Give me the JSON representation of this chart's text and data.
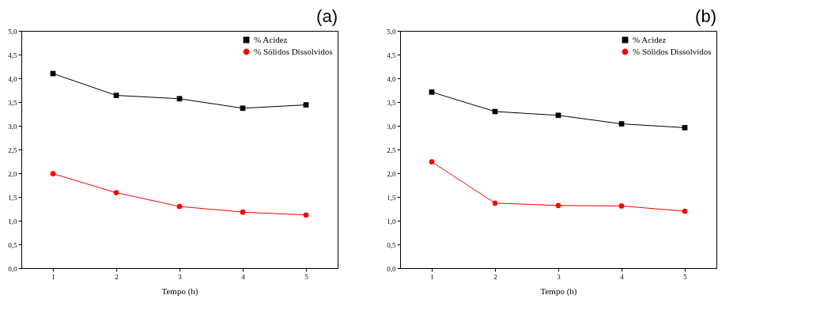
{
  "chart_data": [
    {
      "type": "line",
      "title": "(a)",
      "xlabel": "Tempo (h)",
      "x": [
        1,
        2,
        3,
        4,
        5
      ],
      "series": [
        {
          "name": "% Acidez",
          "color": "#000000",
          "marker": "square",
          "values": [
            4.1,
            3.64,
            3.57,
            3.37,
            3.44
          ]
        },
        {
          "name": "% Sólidos Dissolvidos",
          "color": "#ff0000",
          "marker": "circle",
          "values": [
            1.99,
            1.59,
            1.3,
            1.18,
            1.12
          ]
        }
      ],
      "xlim": [
        0.5,
        5.5
      ],
      "xticks": [
        1,
        2,
        3,
        4,
        5
      ],
      "ylim": [
        0,
        5
      ],
      "yticks": [
        {
          "value": 0,
          "label": "0,0"
        },
        {
          "value": 0.5,
          "label": "0,5"
        },
        {
          "value": 1,
          "label": "1,0"
        },
        {
          "value": 1.5,
          "label": "1,5"
        },
        {
          "value": 2,
          "label": "2,0"
        },
        {
          "value": 2.5,
          "label": "2,5"
        },
        {
          "value": 3,
          "label": "3,0"
        },
        {
          "value": 3.5,
          "label": "3,5"
        },
        {
          "value": 4,
          "label": "4,0"
        },
        {
          "value": 4.5,
          "label": "4,5"
        },
        {
          "value": 5,
          "label": "5,0"
        }
      ],
      "grid": false,
      "legend": "top right",
      "line_style": "solid"
    },
    {
      "type": "line",
      "title": "(b)",
      "xlabel": "Tempo (h)",
      "x": [
        1,
        2,
        3,
        4,
        5
      ],
      "series": [
        {
          "name": "% Acidez",
          "color": "#000000",
          "marker": "square",
          "values": [
            3.71,
            3.3,
            3.22,
            3.04,
            2.96
          ]
        },
        {
          "name": "% Sólidos Dissolvidos",
          "color": "#ff0000",
          "marker": "circle",
          "values": [
            2.24,
            1.37,
            1.32,
            1.31,
            1.2
          ]
        }
      ],
      "xlim": [
        0.5,
        5.5
      ],
      "xticks": [
        1,
        2,
        3,
        4,
        5
      ],
      "ylim": [
        0,
        5
      ],
      "yticks": [
        {
          "value": 0,
          "label": "0,0"
        },
        {
          "value": 0.5,
          "label": "0,5"
        },
        {
          "value": 1,
          "label": "1,0"
        },
        {
          "value": 1.5,
          "label": "1,5"
        },
        {
          "value": 2,
          "label": "2,0"
        },
        {
          "value": 2.5,
          "label": "2,5"
        },
        {
          "value": 3,
          "label": "3,0"
        },
        {
          "value": 3.5,
          "label": "3,5"
        },
        {
          "value": 4,
          "label": "4,0"
        },
        {
          "value": 4.5,
          "label": "4,5"
        },
        {
          "value": 5,
          "label": "5,0"
        }
      ],
      "grid": false,
      "legend": "top right",
      "line_style": "solid"
    }
  ]
}
